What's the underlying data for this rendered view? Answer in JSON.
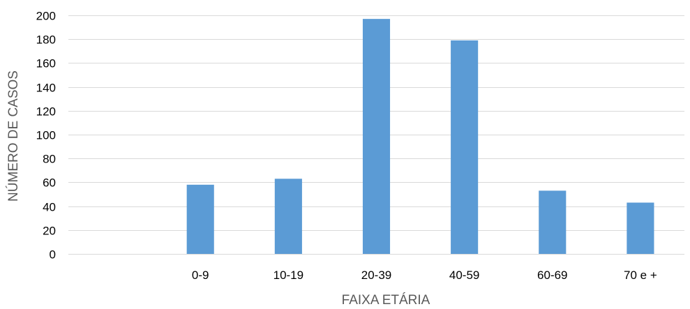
{
  "chart_data": {
    "type": "bar",
    "categories": [
      "",
      "0-9",
      "10-19",
      "20-39",
      "40-59",
      "60-69",
      "70 e +"
    ],
    "series": [
      {
        "values": [
          null,
          58,
          63,
          197,
          179,
          53,
          43
        ]
      }
    ],
    "title": "",
    "xlabel": "FAIXA ETÁRIA",
    "ylabel": "NÚMERO DE CASOS",
    "ylim": [
      0,
      200
    ],
    "yticks": [
      0,
      20,
      40,
      60,
      80,
      100,
      120,
      140,
      160,
      180,
      200
    ],
    "grid": true,
    "legend": "none",
    "colors": {
      "bar": "#5B9BD5",
      "grid": "#D9D9D9",
      "tick_text": "#000000",
      "axis_title": "#595959"
    }
  }
}
